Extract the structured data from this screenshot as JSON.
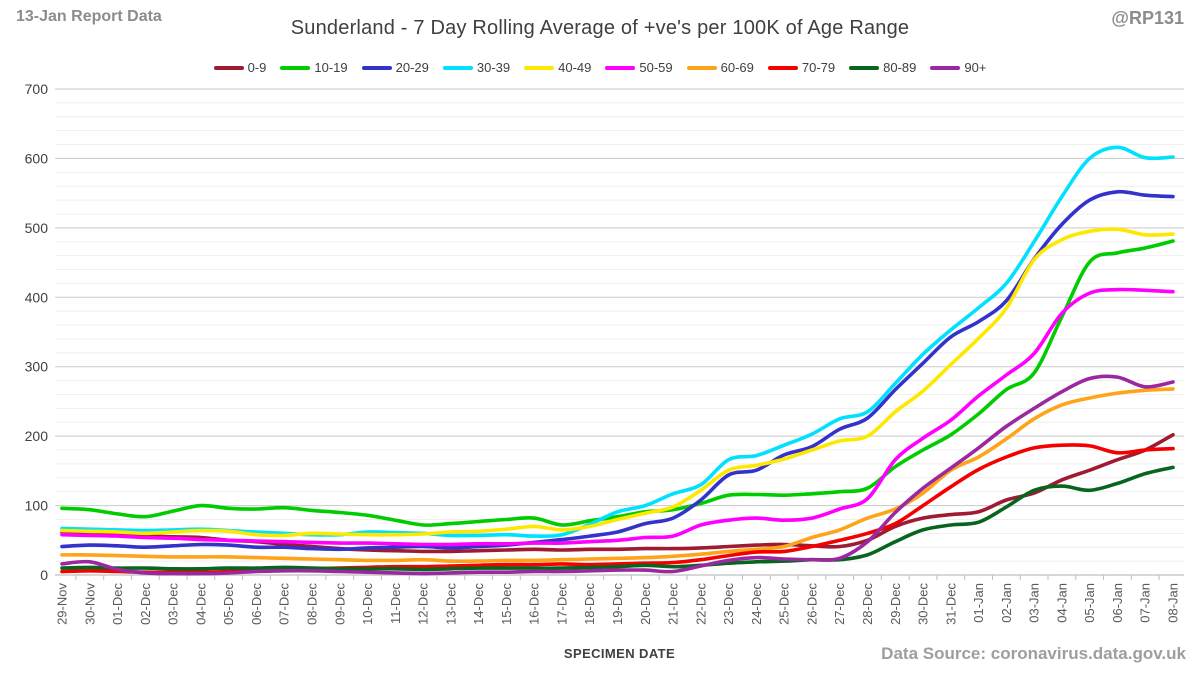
{
  "header": {
    "report_label": "13-Jan Report Data",
    "title": "Sunderland - 7 Day Rolling Average of +ve's per 100K of Age Range",
    "handle": "@RP131"
  },
  "footer": {
    "x_axis_title": "SPECIMEN DATE",
    "data_source": "Data Source: coronavirus.data.gov.uk"
  },
  "colors": {
    "background": "#ffffff",
    "title_text": "#3f3f3f",
    "muted_text": "#8c8c8c",
    "axis_text": "#595959",
    "major_grid": "#c9c9c9",
    "minor_grid": "#efefef",
    "axis_line": "#bfbfbf"
  },
  "chart_data": {
    "type": "line",
    "title": "Sunderland - 7 Day Rolling Average of +ve's per 100K of Age Range",
    "xlabel": "SPECIMEN DATE",
    "ylabel": "",
    "ylim": [
      0,
      700
    ],
    "y_major_step": 100,
    "y_minor_step": 20,
    "grid": "horizontal-only",
    "legend_position": "top",
    "categories": [
      "29-Nov",
      "30-Nov",
      "01-Dec",
      "02-Dec",
      "03-Dec",
      "04-Dec",
      "05-Dec",
      "06-Dec",
      "07-Dec",
      "08-Dec",
      "09-Dec",
      "10-Dec",
      "11-Dec",
      "12-Dec",
      "13-Dec",
      "14-Dec",
      "15-Dec",
      "16-Dec",
      "17-Dec",
      "18-Dec",
      "19-Dec",
      "20-Dec",
      "21-Dec",
      "22-Dec",
      "23-Dec",
      "24-Dec",
      "25-Dec",
      "26-Dec",
      "27-Dec",
      "28-Dec",
      "29-Dec",
      "30-Dec",
      "31-Dec",
      "01-Jan",
      "02-Jan",
      "03-Jan",
      "04-Jan",
      "05-Jan",
      "06-Jan",
      "07-Jan",
      "08-Jan"
    ],
    "series": [
      {
        "name": "0-9",
        "color": "#9e1b32",
        "values": [
          62,
          60,
          58,
          56,
          55,
          54,
          50,
          48,
          44,
          41,
          38,
          36,
          35,
          34,
          34,
          35,
          36,
          37,
          36,
          37,
          37,
          38,
          38,
          39,
          41,
          43,
          44,
          42,
          41,
          50,
          70,
          82,
          87,
          91,
          108,
          118,
          137,
          151,
          166,
          180,
          202
        ]
      },
      {
        "name": "10-19",
        "color": "#00cc00",
        "values": [
          96,
          94,
          88,
          84,
          92,
          100,
          96,
          95,
          97,
          93,
          90,
          86,
          79,
          72,
          74,
          77,
          80,
          82,
          72,
          78,
          84,
          91,
          94,
          103,
          115,
          116,
          115,
          117,
          120,
          125,
          156,
          180,
          202,
          232,
          267,
          291,
          372,
          451,
          464,
          471,
          481
        ]
      },
      {
        "name": "20-29",
        "color": "#3333cc",
        "values": [
          41,
          43,
          42,
          40,
          42,
          44,
          43,
          40,
          40,
          38,
          37,
          39,
          40,
          41,
          39,
          41,
          43,
          47,
          51,
          56,
          62,
          74,
          82,
          108,
          144,
          151,
          173,
          185,
          210,
          226,
          267,
          305,
          343,
          365,
          395,
          455,
          505,
          540,
          552,
          547,
          545
        ]
      },
      {
        "name": "30-39",
        "color": "#00e0ff",
        "values": [
          67,
          66,
          65,
          64,
          65,
          66,
          64,
          62,
          60,
          58,
          58,
          62,
          61,
          60,
          57,
          57,
          58,
          56,
          58,
          73,
          91,
          100,
          117,
          130,
          166,
          172,
          187,
          203,
          225,
          235,
          276,
          318,
          353,
          385,
          420,
          480,
          545,
          600,
          616,
          601,
          602
        ]
      },
      {
        "name": "40-49",
        "color": "#ffe800",
        "values": [
          64,
          63,
          62,
          60,
          62,
          64,
          63,
          58,
          57,
          60,
          59,
          58,
          58,
          59,
          62,
          63,
          66,
          70,
          65,
          70,
          80,
          89,
          98,
          122,
          151,
          158,
          167,
          180,
          193,
          200,
          235,
          265,
          303,
          341,
          384,
          454,
          483,
          495,
          498,
          490,
          491
        ]
      },
      {
        "name": "50-59",
        "color": "#ff00ff",
        "values": [
          58,
          57,
          56,
          54,
          53,
          51,
          50,
          49,
          48,
          47,
          46,
          46,
          45,
          44,
          44,
          45,
          45,
          46,
          46,
          48,
          50,
          54,
          56,
          72,
          79,
          82,
          79,
          82,
          95,
          110,
          166,
          197,
          223,
          258,
          288,
          319,
          377,
          406,
          411,
          410,
          408
        ]
      },
      {
        "name": "60-69",
        "color": "#ffa319",
        "values": [
          29,
          29,
          28,
          27,
          26,
          26,
          26,
          25,
          24,
          23,
          22,
          21,
          21,
          22,
          20,
          20,
          21,
          21,
          22,
          23,
          24,
          25,
          27,
          30,
          34,
          37,
          41,
          54,
          65,
          82,
          95,
          118,
          151,
          170,
          196,
          225,
          245,
          255,
          262,
          266,
          268
        ]
      },
      {
        "name": "70-79",
        "color": "#f40000",
        "values": [
          5,
          6,
          5,
          4,
          4,
          4,
          5,
          7,
          8,
          9,
          10,
          11,
          12,
          12,
          13,
          14,
          15,
          15,
          16,
          15,
          16,
          17,
          18,
          22,
          28,
          33,
          34,
          41,
          50,
          60,
          74,
          100,
          127,
          152,
          170,
          183,
          187,
          186,
          176,
          180,
          182
        ]
      },
      {
        "name": "80-89",
        "color": "#07651e",
        "values": [
          10,
          11,
          10,
          10,
          9,
          9,
          10,
          10,
          11,
          10,
          9,
          9,
          9,
          8,
          9,
          10,
          10,
          10,
          10,
          11,
          12,
          14,
          12,
          14,
          17,
          19,
          20,
          22,
          22,
          29,
          48,
          65,
          72,
          76,
          98,
          122,
          128,
          122,
          132,
          146,
          155
        ]
      },
      {
        "name": "90+",
        "color": "#9b28a0",
        "values": [
          16,
          19,
          8,
          3,
          2,
          2,
          3,
          5,
          6,
          6,
          5,
          4,
          3,
          2,
          3,
          4,
          4,
          5,
          5,
          6,
          7,
          7,
          5,
          13,
          21,
          25,
          23,
          22,
          24,
          48,
          90,
          125,
          154,
          183,
          214,
          240,
          264,
          283,
          285,
          271,
          278
        ]
      }
    ]
  }
}
